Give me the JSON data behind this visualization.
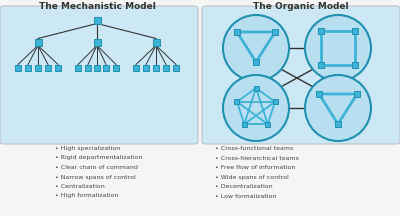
{
  "title_left": "The Mechanistic Model",
  "title_right": "The Organic Model",
  "bg_color": "#cce8f4",
  "box_color": "#3db3d8",
  "box_edge": "#2090b0",
  "line_color": "#333333",
  "circle_fill": "#b8dff0",
  "circle_edge": "#2090b0",
  "left_bullets": [
    "High specialization",
    "Rigid departmentalization",
    "Clear chain of command",
    "Narrow spans of control",
    "Centralization",
    "High formalization"
  ],
  "right_bullets": [
    "Cross-functional teams",
    "Cross-hierarchical teams",
    "Free flow of information",
    "Wide spans of control",
    "Decentralization",
    "Low formalization"
  ],
  "fig_bg": "#f5f5f5",
  "panel_edge": "#bbbbbb",
  "text_color": "#333333",
  "bullet_color": "#444444"
}
